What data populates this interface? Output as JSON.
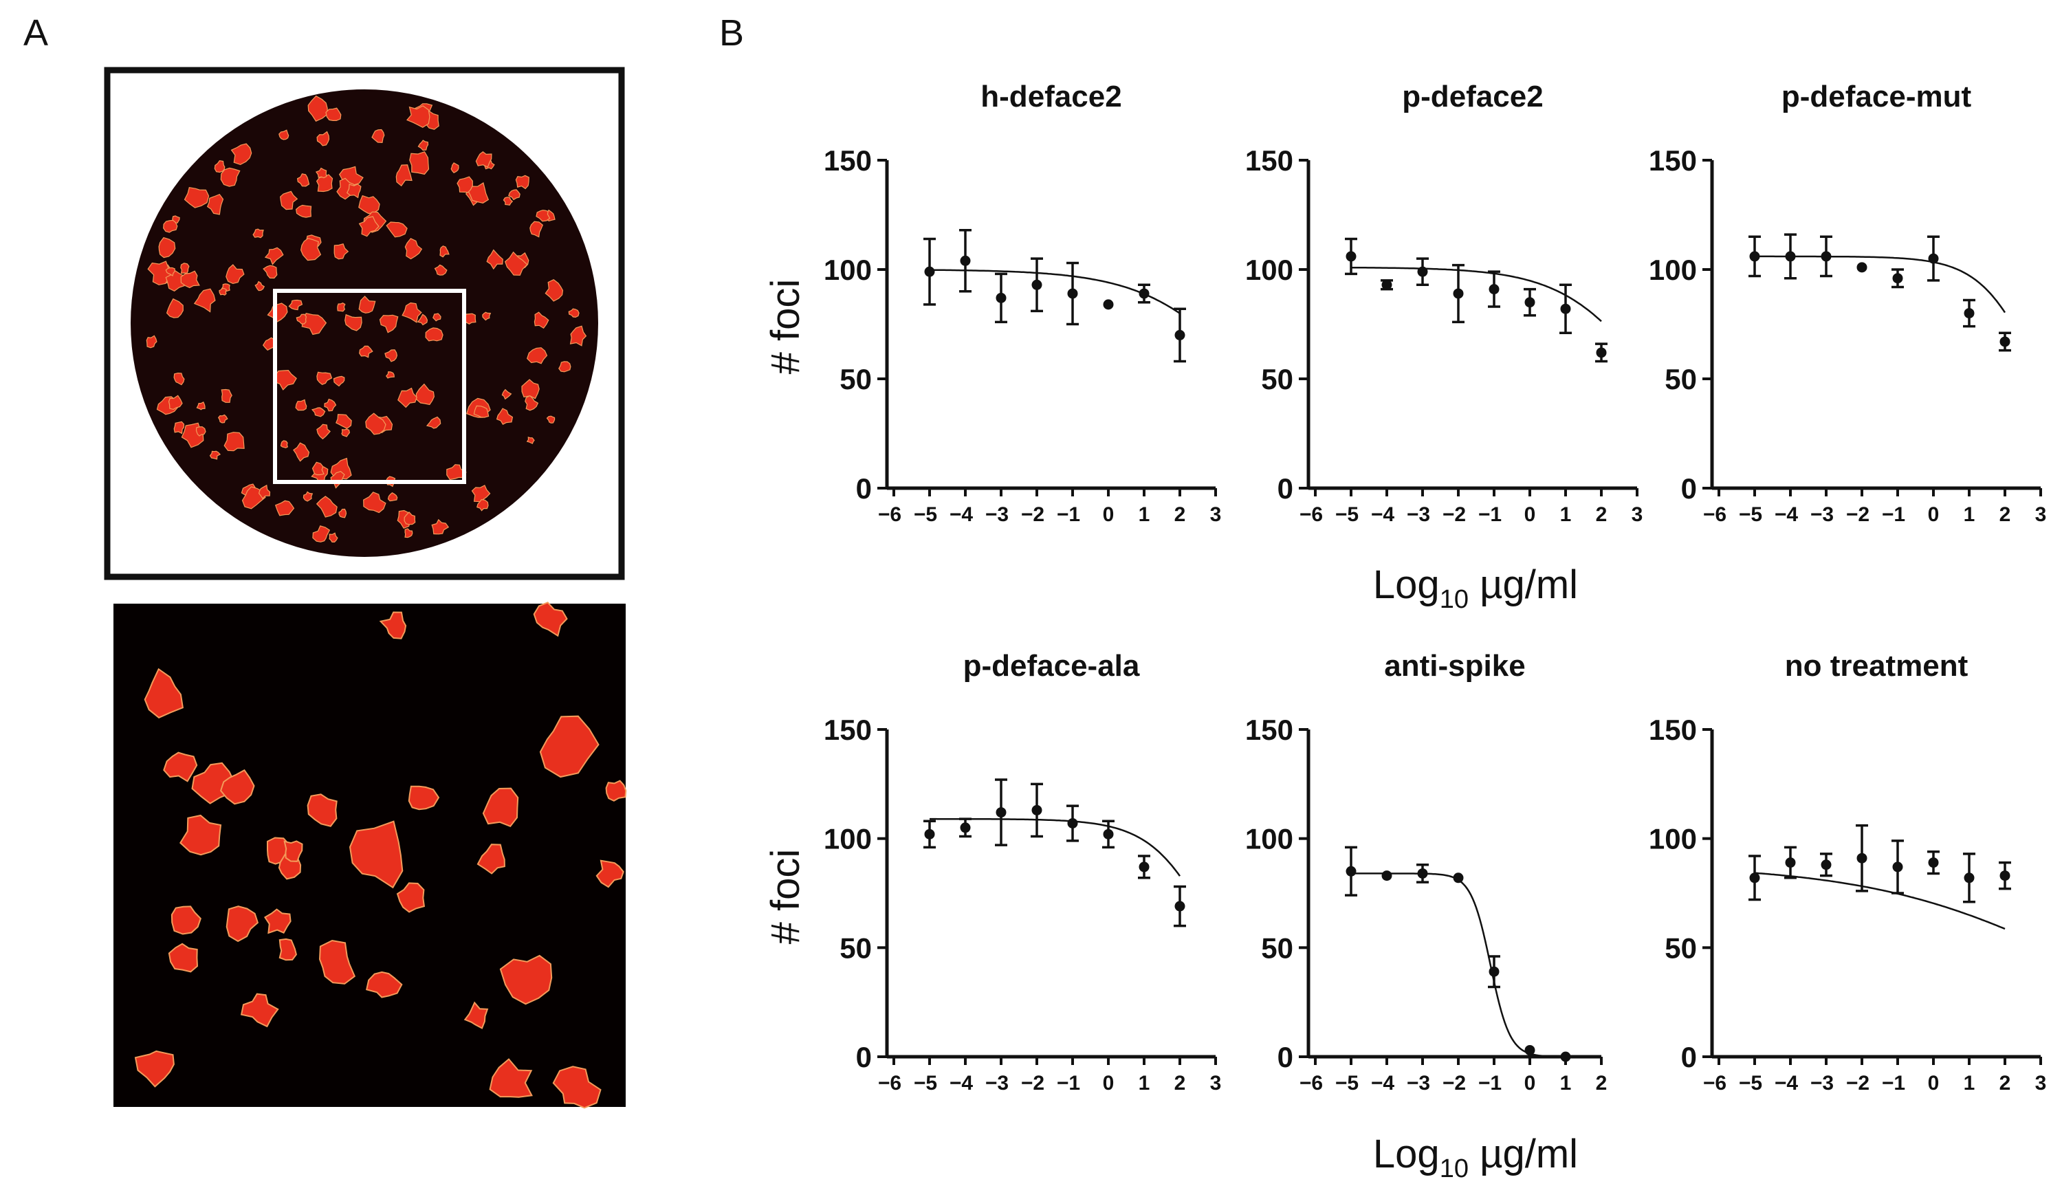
{
  "panel_labels": {
    "a": "A",
    "b": "B"
  },
  "colors": {
    "background": "#ffffff",
    "plate": "#1a0606",
    "foci": "#e8301e",
    "foci_edge": "#f39a5a",
    "zoom_background": "#050000",
    "ink": "#111111"
  },
  "micrographs": [
    {
      "kind": "whole-well",
      "description_icon": "circular-well-image",
      "has_zoom_box": true
    },
    {
      "kind": "zoomed-region",
      "description_icon": "zoomed-well-image"
    }
  ],
  "axis_text": {
    "ylabel": "# foci",
    "xlabel_main": "Log",
    "xlabel_sub": "10",
    "xlabel_unit": " µg/ml"
  },
  "chart_data": [
    {
      "type": "scatter",
      "title": "h-deface2",
      "ylabel": "# foci",
      "xlabel": "",
      "xlim": [
        -6,
        3
      ],
      "ylim": [
        0,
        150
      ],
      "xticks": [
        "−6",
        "−5",
        "−4",
        "−3",
        "−2",
        "−1",
        "0",
        "1",
        "2",
        "3"
      ],
      "yticks": [
        "0",
        "50",
        "100",
        "150"
      ],
      "x": [
        -5,
        -4,
        -3,
        -2,
        -1,
        0,
        1,
        2
      ],
      "y": [
        99,
        104,
        87,
        93,
        89,
        84,
        89,
        70
      ],
      "err": [
        15,
        14,
        11,
        12,
        14,
        0,
        4,
        12
      ],
      "fit": {
        "top": 100,
        "bottom": 0,
        "logec50": 4,
        "hill": 0.3
      }
    },
    {
      "type": "scatter",
      "title": "p-deface2",
      "ylabel": "",
      "xlabel": "Log10 µg/ml",
      "xlim": [
        -6,
        3
      ],
      "ylim": [
        0,
        150
      ],
      "xticks": [
        "−6",
        "−5",
        "−4",
        "−3",
        "−2",
        "−1",
        "0",
        "1",
        "2",
        "3"
      ],
      "yticks": [
        "0",
        "50",
        "100",
        "150"
      ],
      "x": [
        -5,
        -4,
        -3,
        -2,
        -1,
        0,
        1,
        2
      ],
      "y": [
        106,
        93,
        99,
        89,
        91,
        85,
        82,
        62
      ],
      "err": [
        8,
        2,
        6,
        13,
        8,
        6,
        11,
        4
      ],
      "fit": {
        "top": 101,
        "bottom": 0,
        "logec50": 3.4,
        "hill": 0.35
      }
    },
    {
      "type": "scatter",
      "title": "p-deface-mut",
      "ylabel": "",
      "xlabel": "",
      "xlim": [
        -6,
        3
      ],
      "ylim": [
        0,
        150
      ],
      "xticks": [
        "−6",
        "−5",
        "−4",
        "−3",
        "−2",
        "−1",
        "0",
        "1",
        "2",
        "3"
      ],
      "yticks": [
        "0",
        "50",
        "100",
        "150"
      ],
      "x": [
        -5,
        -4,
        -3,
        -2,
        -1,
        0,
        1,
        2
      ],
      "y": [
        106,
        106,
        106,
        101,
        96,
        105,
        80,
        67
      ],
      "err": [
        9,
        10,
        9,
        0,
        4,
        10,
        6,
        4
      ],
      "fit": {
        "top": 106,
        "bottom": 0,
        "logec50": 2.9,
        "hill": 0.55
      }
    },
    {
      "type": "scatter",
      "title": "p-deface-ala",
      "ylabel": "# foci",
      "xlabel": "",
      "xlim": [
        -6,
        3
      ],
      "ylim": [
        0,
        150
      ],
      "xticks": [
        "−6",
        "−5",
        "−4",
        "−3",
        "−2",
        "−1",
        "0",
        "1",
        "2",
        "3"
      ],
      "yticks": [
        "0",
        "50",
        "100",
        "150"
      ],
      "x": [
        -5,
        -4,
        -3,
        -2,
        -1,
        0,
        1,
        2
      ],
      "y": [
        102,
        105,
        112,
        113,
        107,
        102,
        87,
        69
      ],
      "err": [
        6,
        4,
        15,
        12,
        8,
        6,
        5,
        9
      ],
      "fit": {
        "top": 109,
        "bottom": 0,
        "logec50": 3.0,
        "hill": 0.5
      }
    },
    {
      "type": "scatter",
      "title": "anti-spike",
      "ylabel": "",
      "xlabel": "Log10 µg/ml",
      "xlim": [
        -6,
        2
      ],
      "ylim": [
        0,
        150
      ],
      "xticks": [
        "−6",
        "−5",
        "−4",
        "−3",
        "−2",
        "−1",
        "0",
        "1",
        "2"
      ],
      "yticks": [
        "0",
        "50",
        "100",
        "150"
      ],
      "x": [
        -5,
        -4,
        -3,
        -2,
        -1,
        0,
        1
      ],
      "y": [
        85,
        83,
        84,
        82,
        39,
        3,
        0
      ],
      "err": [
        11,
        0,
        4,
        0,
        7,
        0,
        0
      ],
      "fit": {
        "top": 84,
        "bottom": 0,
        "logec50": -1.1,
        "hill": 1.6
      }
    },
    {
      "type": "scatter",
      "title": "no treatment",
      "ylabel": "",
      "xlabel": "",
      "xlim": [
        -6,
        3
      ],
      "ylim": [
        0,
        150
      ],
      "xticks": [
        "−6",
        "−5",
        "−4",
        "−3",
        "−2",
        "−1",
        "0",
        "1",
        "2",
        "3"
      ],
      "yticks": [
        "0",
        "50",
        "100",
        "150"
      ],
      "x": [
        -5,
        -4,
        -3,
        -2,
        -1,
        0,
        1,
        2
      ],
      "y": [
        82,
        89,
        88,
        91,
        87,
        89,
        82,
        83
      ],
      "err": [
        10,
        7,
        5,
        15,
        12,
        5,
        11,
        6
      ],
      "fit": {
        "top": 88,
        "bottom": 0,
        "logec50": 4,
        "hill": 0.15
      }
    }
  ]
}
